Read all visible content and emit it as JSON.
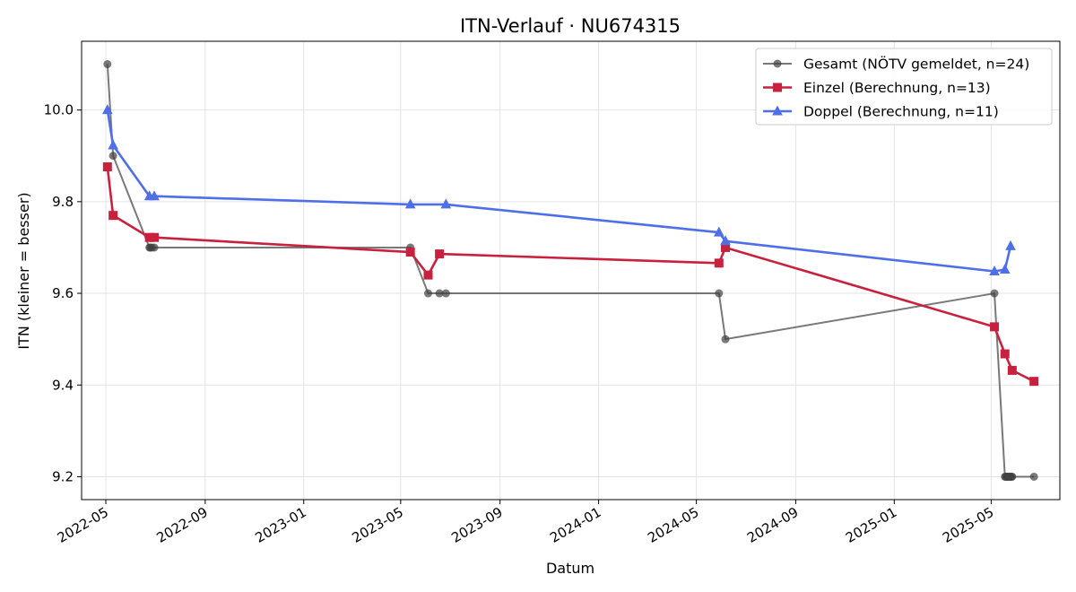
{
  "chart_data": {
    "type": "line",
    "title": "ITN-Verlauf · NU674315",
    "xlabel": "Datum",
    "ylabel": "ITN  (kleiner = besser)",
    "xlim": [
      "2022-04-01",
      "2025-07-25"
    ],
    "ylim": [
      9.15,
      10.15
    ],
    "x_ticks": [
      "2022-05",
      "2022-09",
      "2023-01",
      "2023-05",
      "2023-09",
      "2024-01",
      "2024-05",
      "2024-09",
      "2025-01",
      "2025-05"
    ],
    "y_ticks": [
      "9.2",
      "9.4",
      "9.6",
      "9.8",
      "10.0"
    ],
    "grid": true,
    "legend_position": "top-right",
    "series": [
      {
        "name": "Gesamt (NÖTV gemeldet, n=24)",
        "color": "#404040",
        "marker": "circle",
        "points": [
          {
            "x": "2022-05-03",
            "y": 10.1
          },
          {
            "x": "2022-05-10",
            "y": 9.9
          },
          {
            "x": "2022-06-24",
            "y": 9.7
          },
          {
            "x": "2022-06-25",
            "y": 9.7
          },
          {
            "x": "2022-06-27",
            "y": 9.7
          },
          {
            "x": "2022-06-30",
            "y": 9.7
          },
          {
            "x": "2023-05-13",
            "y": 9.7
          },
          {
            "x": "2023-06-04",
            "y": 9.6
          },
          {
            "x": "2023-06-18",
            "y": 9.6
          },
          {
            "x": "2023-06-26",
            "y": 9.6
          },
          {
            "x": "2024-05-29",
            "y": 9.6
          },
          {
            "x": "2024-06-06",
            "y": 9.5
          },
          {
            "x": "2025-05-05",
            "y": 9.6
          },
          {
            "x": "2025-05-18",
            "y": 9.2
          },
          {
            "x": "2025-05-19",
            "y": 9.2
          },
          {
            "x": "2025-05-20",
            "y": 9.2
          },
          {
            "x": "2025-05-21",
            "y": 9.2
          },
          {
            "x": "2025-05-22",
            "y": 9.2
          },
          {
            "x": "2025-05-23",
            "y": 9.2
          },
          {
            "x": "2025-05-24",
            "y": 9.2
          },
          {
            "x": "2025-05-25",
            "y": 9.2
          },
          {
            "x": "2025-05-26",
            "y": 9.2
          },
          {
            "x": "2025-05-27",
            "y": 9.2
          },
          {
            "x": "2025-06-23",
            "y": 9.2
          }
        ]
      },
      {
        "name": "Einzel (Berechnung, n=13)",
        "color": "#c8213e",
        "marker": "square",
        "points": [
          {
            "x": "2022-05-03",
            "y": 9.876
          },
          {
            "x": "2022-05-10",
            "y": 9.77
          },
          {
            "x": "2022-06-24",
            "y": 9.722
          },
          {
            "x": "2022-06-30",
            "y": 9.722
          },
          {
            "x": "2023-05-13",
            "y": 9.69
          },
          {
            "x": "2023-06-04",
            "y": 9.64
          },
          {
            "x": "2023-06-18",
            "y": 9.686
          },
          {
            "x": "2024-05-29",
            "y": 9.666
          },
          {
            "x": "2024-06-06",
            "y": 9.7
          },
          {
            "x": "2025-05-05",
            "y": 9.527
          },
          {
            "x": "2025-05-18",
            "y": 9.468
          },
          {
            "x": "2025-05-27",
            "y": 9.432
          },
          {
            "x": "2025-06-23",
            "y": 9.408
          }
        ]
      },
      {
        "name": "Doppel (Berechnung, n=11)",
        "color": "#4f6fe8",
        "marker": "triangle",
        "points": [
          {
            "x": "2022-05-03",
            "y": 10.0
          },
          {
            "x": "2022-05-10",
            "y": 9.923
          },
          {
            "x": "2022-06-24",
            "y": 9.812
          },
          {
            "x": "2022-06-30",
            "y": 9.812
          },
          {
            "x": "2023-05-13",
            "y": 9.794
          },
          {
            "x": "2023-06-26",
            "y": 9.794
          },
          {
            "x": "2024-05-29",
            "y": 9.733
          },
          {
            "x": "2024-06-06",
            "y": 9.714
          },
          {
            "x": "2025-05-05",
            "y": 9.648
          },
          {
            "x": "2025-05-18",
            "y": 9.652
          },
          {
            "x": "2025-05-25",
            "y": 9.703
          }
        ]
      }
    ]
  }
}
